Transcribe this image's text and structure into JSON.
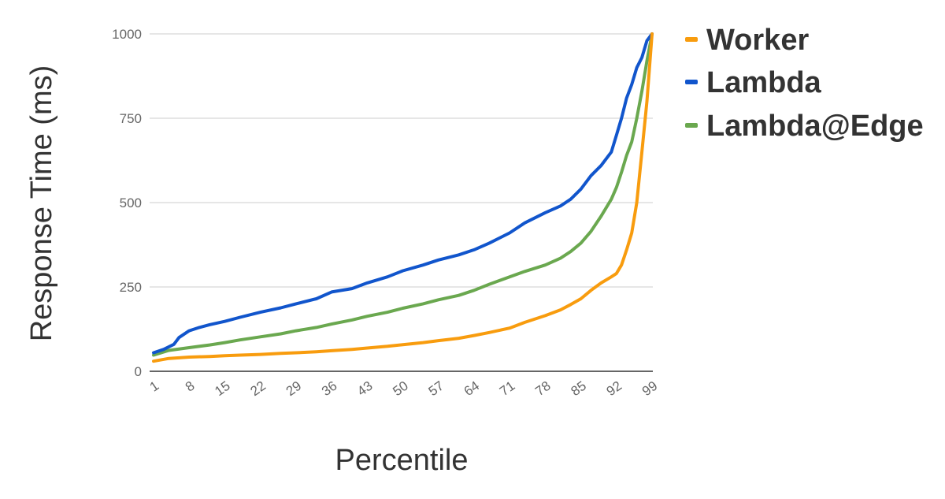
{
  "chart_data": {
    "type": "line",
    "title": "",
    "xlabel": "Percentile",
    "ylabel": "Response Time (ms)",
    "ylim": [
      0,
      1000
    ],
    "y_ticks": [
      0,
      250,
      500,
      750,
      1000
    ],
    "x_tick_labels": [
      "1",
      "8",
      "15",
      "22",
      "29",
      "36",
      "43",
      "50",
      "57",
      "64",
      "71",
      "78",
      "85",
      "92",
      "99"
    ],
    "grid": "horizontal",
    "legend_position": "right",
    "series": [
      {
        "name": "Worker",
        "color": "#F89C0E",
        "x": [
          1,
          4,
          8,
          12,
          15,
          18,
          22,
          26,
          29,
          33,
          36,
          40,
          43,
          47,
          50,
          54,
          57,
          61,
          64,
          67,
          71,
          74,
          78,
          81,
          83,
          85,
          87,
          89,
          91,
          92,
          93,
          94,
          95,
          96,
          97,
          98,
          99
        ],
        "y": [
          30,
          38,
          42,
          44,
          46,
          48,
          50,
          53,
          55,
          58,
          61,
          65,
          69,
          74,
          79,
          85,
          91,
          98,
          106,
          115,
          128,
          145,
          165,
          182,
          198,
          215,
          240,
          262,
          280,
          290,
          315,
          360,
          410,
          500,
          650,
          800,
          1000
        ]
      },
      {
        "name": "Lambda",
        "color": "#1155CC",
        "x": [
          1,
          3,
          5,
          6,
          8,
          10,
          12,
          15,
          18,
          22,
          26,
          29,
          33,
          36,
          40,
          43,
          47,
          50,
          54,
          57,
          61,
          64,
          67,
          71,
          74,
          78,
          81,
          83,
          85,
          87,
          89,
          91,
          92,
          93,
          94,
          95,
          96,
          97,
          98,
          99
        ],
        "y": [
          55,
          65,
          80,
          100,
          120,
          130,
          138,
          148,
          160,
          175,
          188,
          200,
          215,
          235,
          245,
          262,
          280,
          298,
          315,
          330,
          345,
          360,
          380,
          410,
          440,
          470,
          490,
          510,
          540,
          580,
          610,
          650,
          700,
          750,
          810,
          850,
          900,
          930,
          980,
          1000
        ]
      },
      {
        "name": "Lambda@Edge",
        "color": "#6AA84F",
        "x": [
          1,
          4,
          8,
          12,
          15,
          18,
          22,
          26,
          29,
          33,
          36,
          40,
          43,
          47,
          50,
          54,
          57,
          61,
          64,
          67,
          71,
          74,
          78,
          81,
          83,
          85,
          87,
          89,
          91,
          92,
          93,
          94,
          95,
          96,
          97,
          98,
          99
        ],
        "y": [
          48,
          62,
          70,
          78,
          85,
          93,
          102,
          111,
          120,
          130,
          140,
          152,
          163,
          175,
          187,
          200,
          212,
          225,
          240,
          258,
          280,
          296,
          315,
          335,
          355,
          380,
          415,
          460,
          510,
          545,
          590,
          640,
          680,
          750,
          830,
          920,
          1000
        ]
      }
    ]
  }
}
